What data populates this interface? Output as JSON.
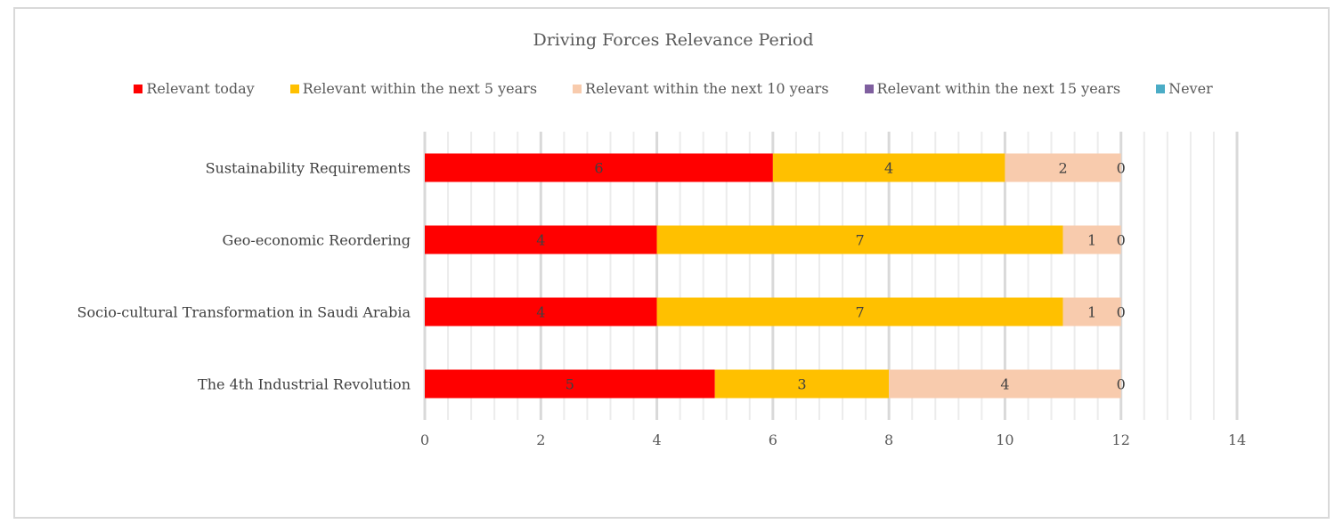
{
  "chart_data": {
    "type": "bar",
    "orientation": "horizontal",
    "stacked": true,
    "title": "Driving Forces Relevance Period",
    "categories": [
      "Sustainability Requirements",
      "Geo-economic Reordering",
      "Socio-cultural Transformation in Saudi Arabia",
      "The 4th Industrial Revolution"
    ],
    "series": [
      {
        "name": "Relevant today",
        "color": "#ff0000",
        "values": [
          6,
          4,
          4,
          5
        ]
      },
      {
        "name": "Relevant within the next 5 years",
        "color": "#ffc000",
        "values": [
          4,
          7,
          7,
          3
        ]
      },
      {
        "name": "Relevant within the next 10 years",
        "color": "#f8cbad",
        "values": [
          2,
          1,
          1,
          4
        ]
      },
      {
        "name": "Relevant within the next 15 years",
        "color": "#7f5f9f",
        "values": [
          0,
          0,
          0,
          0
        ]
      },
      {
        "name": "Never",
        "color": "#4bacc6",
        "values": [
          0,
          0,
          0,
          0
        ]
      }
    ],
    "xlim": [
      0,
      14
    ],
    "xticks": [
      0,
      2,
      4,
      6,
      8,
      10,
      12,
      14
    ],
    "grid": true,
    "legend_position": "top",
    "xlabel": "",
    "ylabel": ""
  }
}
